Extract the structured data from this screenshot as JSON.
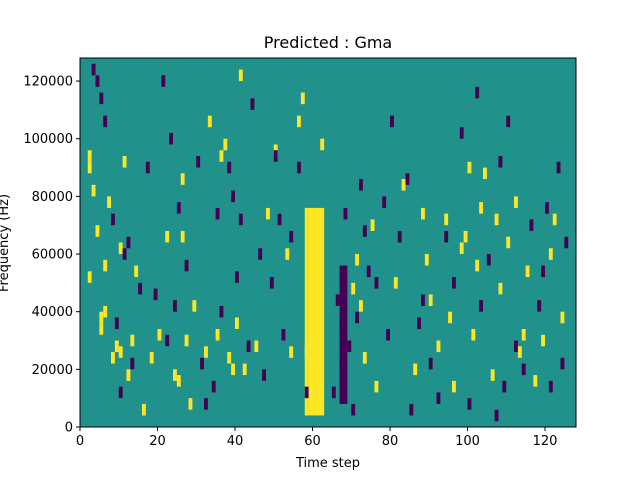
{
  "chart_data": {
    "type": "heatmap",
    "title": "Predicted : Gma",
    "xlabel": "Time step",
    "ylabel": "Frequency (Hz)",
    "xlim": [
      0,
      128
    ],
    "ylim": [
      0,
      128000
    ],
    "x_ticks": [
      0,
      20,
      40,
      60,
      80,
      100,
      120
    ],
    "y_ticks": [
      0,
      20000,
      40000,
      60000,
      80000,
      100000,
      120000
    ],
    "x_tick_labels": [
      "0",
      "20",
      "40",
      "60",
      "80",
      "100",
      "120"
    ],
    "y_tick_labels": [
      "0",
      "20000",
      "40000",
      "60000",
      "80000",
      "100000",
      "120000"
    ],
    "grid": false,
    "legend": "none",
    "colormap": "viridis",
    "colors": {
      "low": "#440154",
      "mid": "#21918c",
      "high": "#fde725"
    },
    "background_level": "mid",
    "high_cells": [
      [
        2,
        88000
      ],
      [
        2,
        92000
      ],
      [
        3,
        80000
      ],
      [
        2,
        50000
      ],
      [
        4,
        66000
      ],
      [
        5,
        36000
      ],
      [
        6,
        38000
      ],
      [
        5,
        32000
      ],
      [
        7,
        76000
      ],
      [
        6,
        54000
      ],
      [
        8,
        22000
      ],
      [
        9,
        26000
      ],
      [
        10,
        24000
      ],
      [
        11,
        90000
      ],
      [
        10,
        60000
      ],
      [
        12,
        16000
      ],
      [
        13,
        28000
      ],
      [
        14,
        52000
      ],
      [
        16,
        4000
      ],
      [
        18,
        22000
      ],
      [
        20,
        30000
      ],
      [
        22,
        64000
      ],
      [
        24,
        16000
      ],
      [
        25,
        14000
      ],
      [
        26,
        84000
      ],
      [
        26,
        64000
      ],
      [
        27,
        28000
      ],
      [
        28,
        6000
      ],
      [
        29,
        40000
      ],
      [
        32,
        24000
      ],
      [
        33,
        104000
      ],
      [
        35,
        30000
      ],
      [
        36,
        92000
      ],
      [
        37,
        96000
      ],
      [
        38,
        22000
      ],
      [
        39,
        18000
      ],
      [
        40,
        34000
      ],
      [
        41,
        120000
      ],
      [
        42,
        18000
      ],
      [
        45,
        26000
      ],
      [
        48,
        72000
      ],
      [
        50,
        94000
      ],
      [
        53,
        58000
      ],
      [
        54,
        24000
      ],
      [
        56,
        104000
      ],
      [
        57,
        112000
      ],
      [
        58,
        24000
      ],
      [
        62,
        96000
      ],
      [
        70,
        46000
      ],
      [
        71,
        56000
      ],
      [
        72,
        40000
      ],
      [
        73,
        22000
      ],
      [
        75,
        68000
      ],
      [
        76,
        12000
      ],
      [
        81,
        48000
      ],
      [
        83,
        82000
      ],
      [
        86,
        18000
      ],
      [
        88,
        72000
      ],
      [
        89,
        56000
      ],
      [
        90,
        42000
      ],
      [
        92,
        26000
      ],
      [
        94,
        70000
      ],
      [
        95,
        36000
      ],
      [
        96,
        12000
      ],
      [
        98,
        60000
      ],
      [
        99,
        64000
      ],
      [
        100,
        88000
      ],
      [
        101,
        30000
      ],
      [
        102,
        54000
      ],
      [
        103,
        74000
      ],
      [
        104,
        86000
      ],
      [
        106,
        16000
      ],
      [
        107,
        70000
      ],
      [
        108,
        46000
      ],
      [
        110,
        62000
      ],
      [
        112,
        76000
      ],
      [
        113,
        24000
      ],
      [
        114,
        30000
      ],
      [
        115,
        52000
      ],
      [
        117,
        14000
      ],
      [
        119,
        28000
      ],
      [
        121,
        58000
      ],
      [
        122,
        70000
      ],
      [
        124,
        36000
      ]
    ],
    "low_cells": [
      [
        3,
        122000
      ],
      [
        4,
        118000
      ],
      [
        5,
        112000
      ],
      [
        6,
        104000
      ],
      [
        8,
        70000
      ],
      [
        9,
        34000
      ],
      [
        10,
        10000
      ],
      [
        11,
        58000
      ],
      [
        12,
        62000
      ],
      [
        13,
        20000
      ],
      [
        15,
        46000
      ],
      [
        17,
        88000
      ],
      [
        19,
        44000
      ],
      [
        21,
        118000
      ],
      [
        22,
        28000
      ],
      [
        23,
        98000
      ],
      [
        24,
        40000
      ],
      [
        25,
        74000
      ],
      [
        27,
        54000
      ],
      [
        30,
        90000
      ],
      [
        31,
        20000
      ],
      [
        32,
        6000
      ],
      [
        34,
        12000
      ],
      [
        35,
        72000
      ],
      [
        36,
        38000
      ],
      [
        38,
        88000
      ],
      [
        39,
        78000
      ],
      [
        40,
        50000
      ],
      [
        41,
        70000
      ],
      [
        43,
        26000
      ],
      [
        44,
        110000
      ],
      [
        46,
        58000
      ],
      [
        47,
        16000
      ],
      [
        49,
        48000
      ],
      [
        50,
        92000
      ],
      [
        51,
        70000
      ],
      [
        52,
        30000
      ],
      [
        54,
        64000
      ],
      [
        56,
        88000
      ],
      [
        58,
        10000
      ],
      [
        65,
        10000
      ],
      [
        66,
        42000
      ],
      [
        67,
        20000
      ],
      [
        67,
        34000
      ],
      [
        68,
        72000
      ],
      [
        69,
        26000
      ],
      [
        70,
        4000
      ],
      [
        71,
        36000
      ],
      [
        72,
        82000
      ],
      [
        73,
        66000
      ],
      [
        74,
        52000
      ],
      [
        76,
        48000
      ],
      [
        78,
        76000
      ],
      [
        79,
        30000
      ],
      [
        80,
        104000
      ],
      [
        82,
        64000
      ],
      [
        84,
        84000
      ],
      [
        85,
        4000
      ],
      [
        87,
        34000
      ],
      [
        88,
        42000
      ],
      [
        90,
        20000
      ],
      [
        92,
        8000
      ],
      [
        94,
        64000
      ],
      [
        96,
        48000
      ],
      [
        98,
        100000
      ],
      [
        100,
        6000
      ],
      [
        102,
        114000
      ],
      [
        103,
        40000
      ],
      [
        105,
        56000
      ],
      [
        107,
        2000
      ],
      [
        108,
        90000
      ],
      [
        109,
        12000
      ],
      [
        110,
        104000
      ],
      [
        112,
        26000
      ],
      [
        114,
        18000
      ],
      [
        116,
        68000
      ],
      [
        118,
        40000
      ],
      [
        119,
        52000
      ],
      [
        120,
        74000
      ],
      [
        121,
        12000
      ],
      [
        123,
        88000
      ],
      [
        124,
        20000
      ],
      [
        125,
        62000
      ]
    ],
    "high_band": {
      "x_range": [
        58,
        63
      ],
      "y_range": [
        4000,
        76000
      ]
    },
    "low_band": {
      "x_range": [
        67,
        69
      ],
      "y_range": [
        8000,
        56000
      ]
    }
  }
}
